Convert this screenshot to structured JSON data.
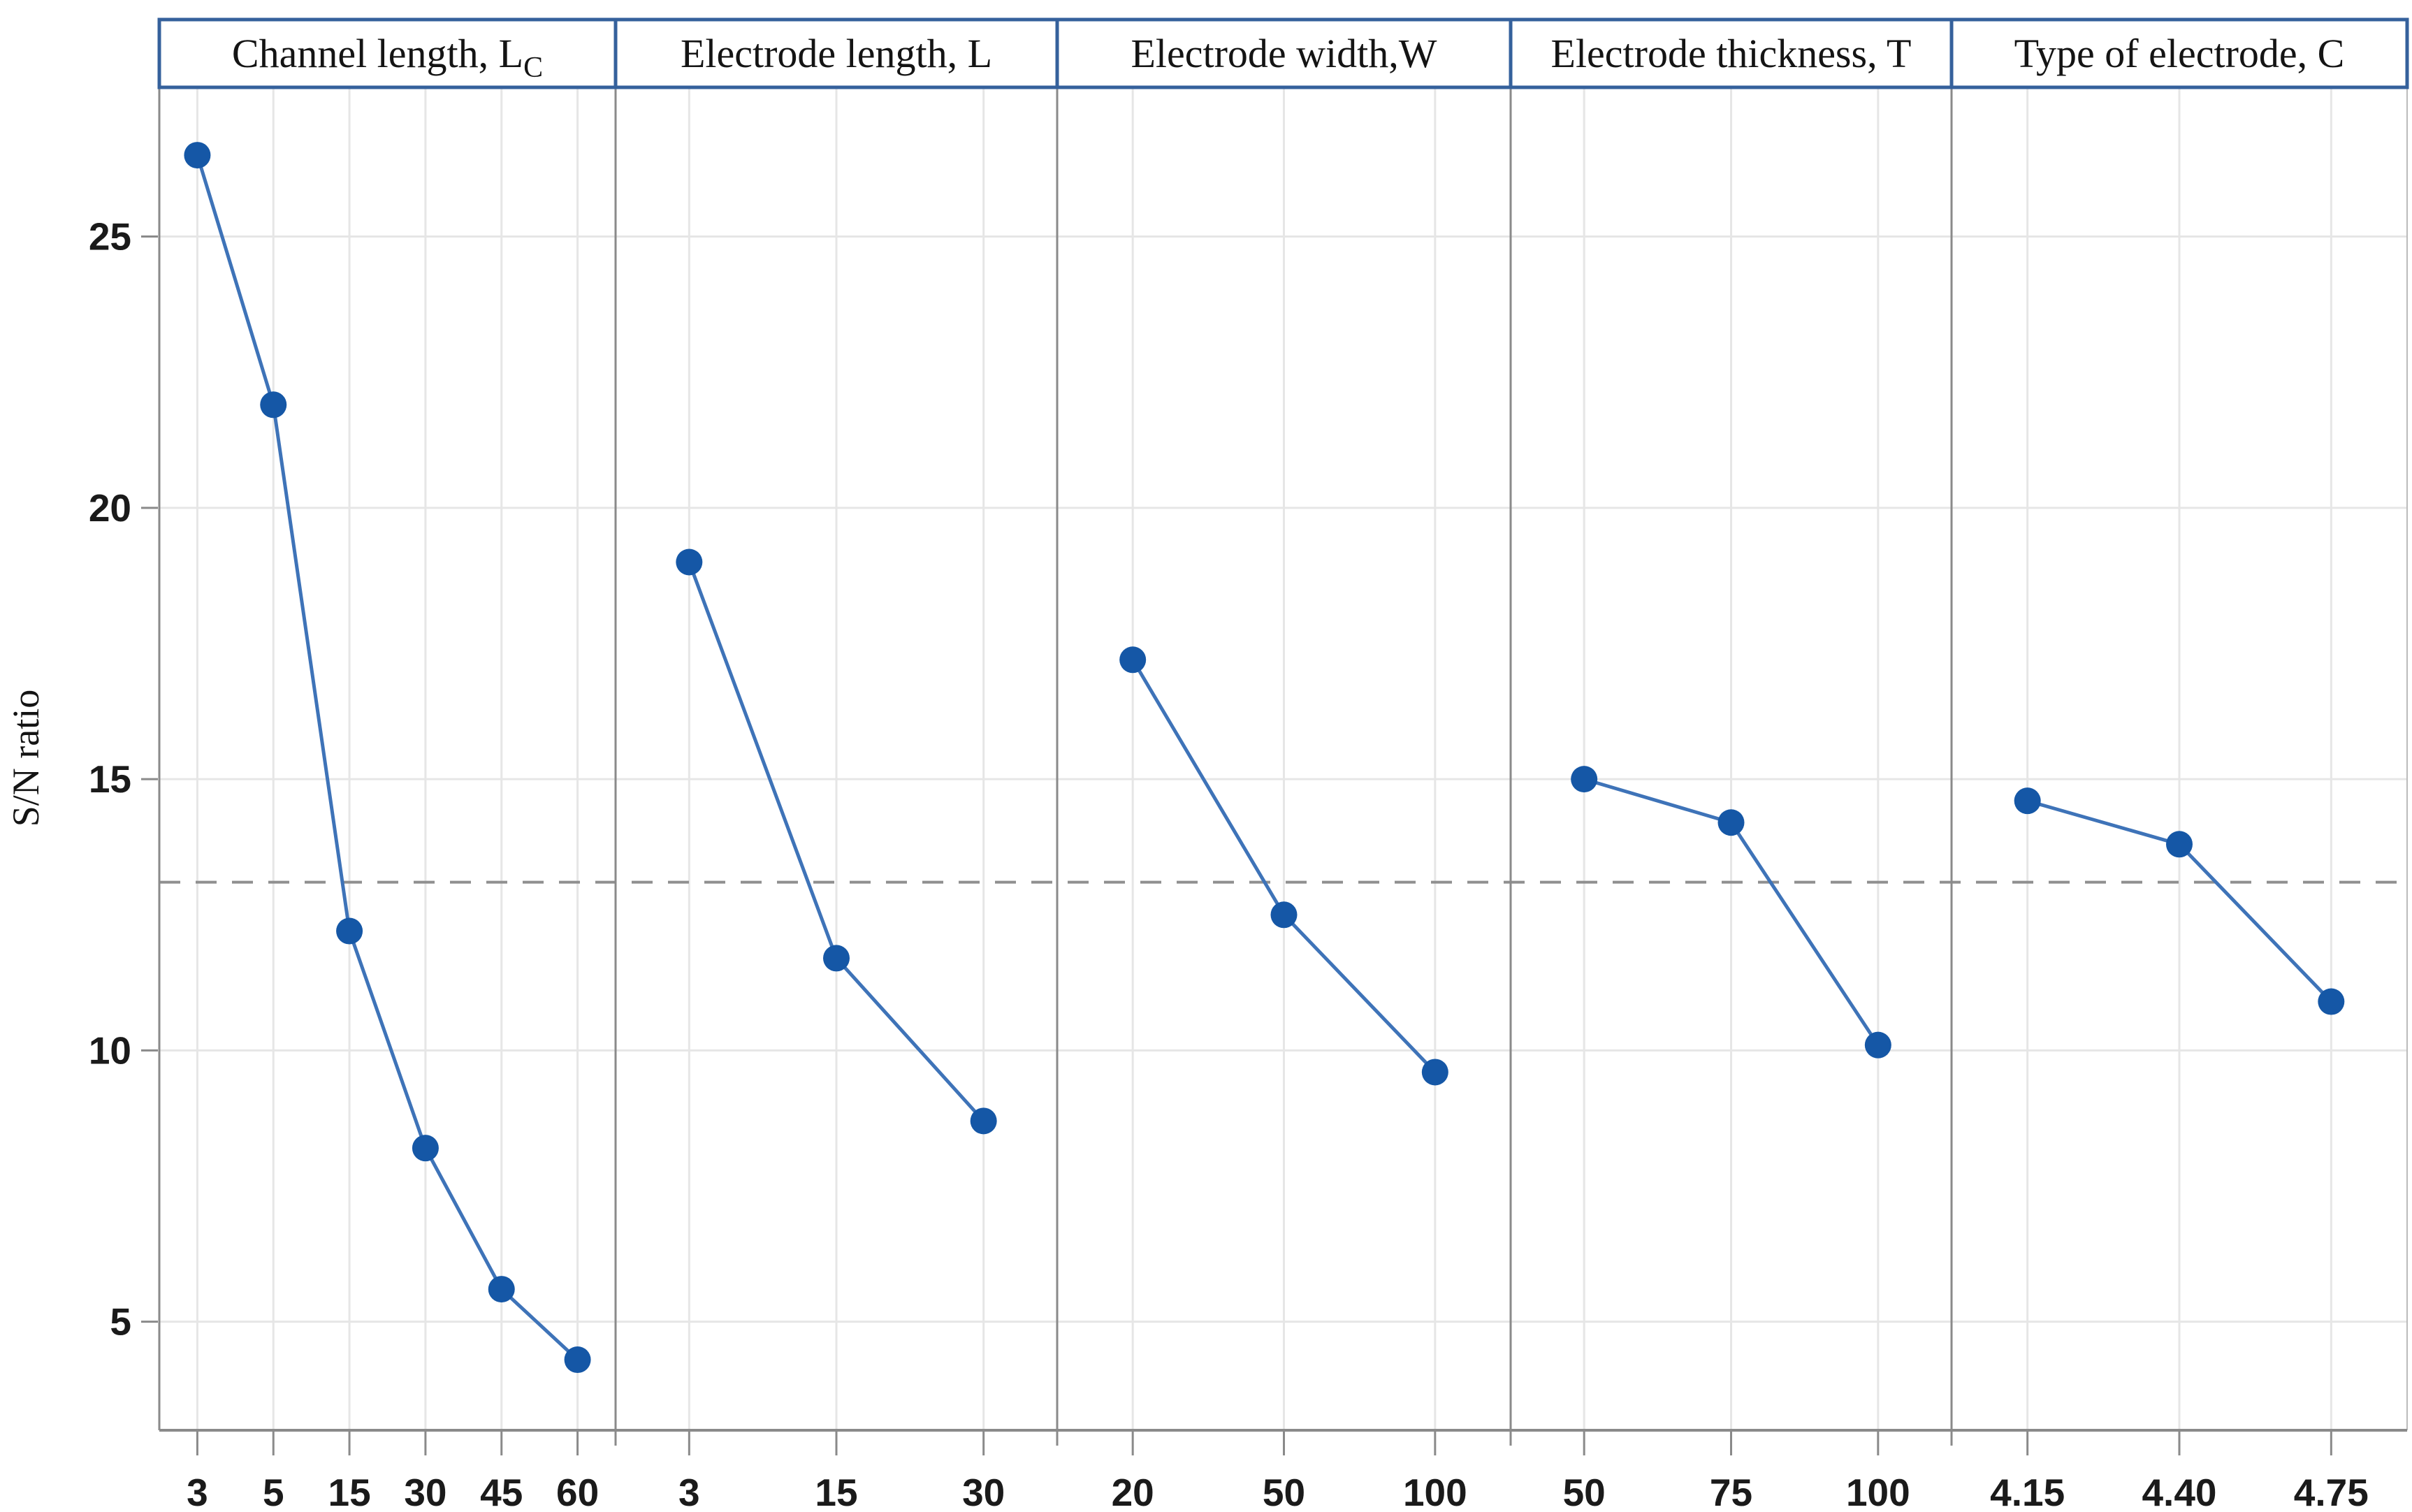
{
  "figure": {
    "background": "#ffffff",
    "y_axis_title": "S/N ratio"
  },
  "colors": {
    "header_border_blue": "#35619c",
    "marker_blue": "#1557a6",
    "line_blue": "#3e73b8",
    "gridline_light": "#e6e6e6",
    "panel_divider_gray": "#8a8a8a",
    "axis_gray": "#8a8a8a",
    "right_frame_gray": "#bbbbbb",
    "dashed_mean_gray": "#8f8f8f",
    "text_dark": "#1a1a1a"
  },
  "chart_data": {
    "type": "line",
    "title": "",
    "xlabel": "",
    "ylabel": "S/N ratio",
    "ylim": [
      3.0,
      27.75
    ],
    "yticks": [
      5,
      10,
      15,
      20,
      25
    ],
    "grid": true,
    "legend": "none",
    "reference_line": {
      "value": 13.1,
      "style": "dashed",
      "meaning": "grand mean of S/N ratio"
    },
    "panels": [
      {
        "header": "Channel length, L",
        "header_subscript": "C",
        "categories": [
          "3",
          "5",
          "15",
          "30",
          "45",
          "60"
        ],
        "values": [
          26.5,
          21.9,
          12.2,
          8.2,
          5.6,
          4.3
        ]
      },
      {
        "header": "Electrode length, L",
        "header_subscript": "",
        "categories": [
          "3",
          "15",
          "30"
        ],
        "values": [
          19.0,
          11.7,
          8.7
        ]
      },
      {
        "header": "Electrode width,W",
        "header_subscript": "",
        "categories": [
          "20",
          "50",
          "100"
        ],
        "values": [
          17.2,
          12.5,
          9.6
        ]
      },
      {
        "header": "Electrode thickness, T",
        "header_subscript": "",
        "categories": [
          "50",
          "75",
          "100"
        ],
        "values": [
          15.0,
          14.2,
          10.1
        ]
      },
      {
        "header": "Type of electrode, C",
        "header_subscript": "",
        "categories": [
          "4.15",
          "4.40",
          "4.75"
        ],
        "values": [
          14.6,
          13.8,
          10.9
        ]
      }
    ]
  }
}
